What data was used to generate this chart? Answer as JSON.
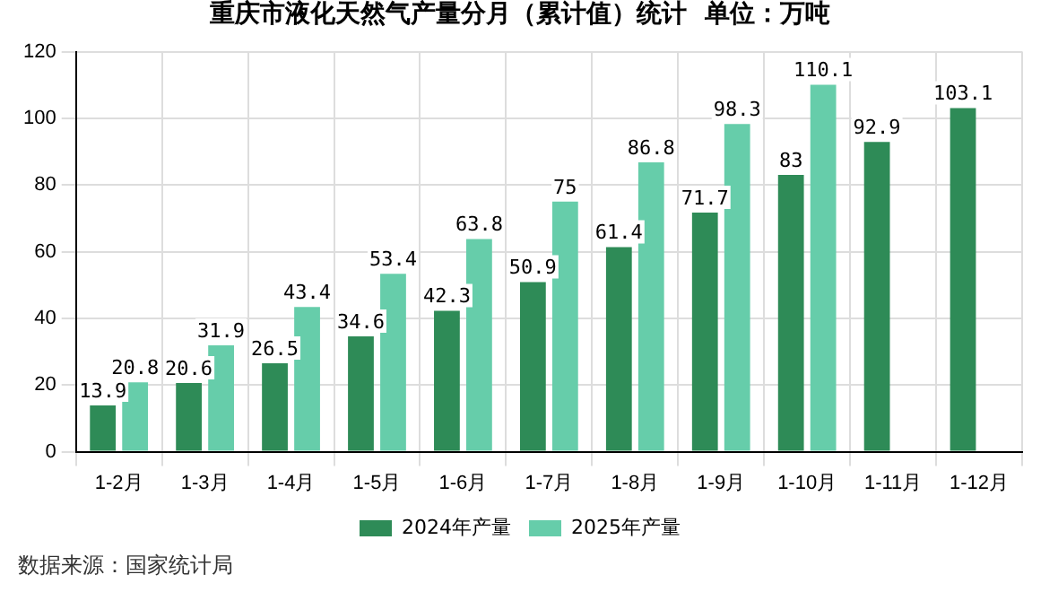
{
  "chart_data": {
    "type": "bar",
    "title": "重庆市液化天然气产量分月（累计值）统计  单位：万吨",
    "categories": [
      "1-2月",
      "1-3月",
      "1-4月",
      "1-5月",
      "1-6月",
      "1-7月",
      "1-8月",
      "1-9月",
      "1-10月",
      "1-11月",
      "1-12月"
    ],
    "series": [
      {
        "name": "2024年产量",
        "color": "#2e8b57",
        "values": [
          13.9,
          20.6,
          26.5,
          34.6,
          42.3,
          50.9,
          61.4,
          71.7,
          83,
          92.9,
          103.1
        ]
      },
      {
        "name": "2025年产量",
        "color": "#66cdaa",
        "values": [
          20.8,
          31.9,
          43.4,
          53.4,
          63.8,
          75,
          86.8,
          98.3,
          110.1,
          null,
          null
        ]
      }
    ],
    "ylim": [
      0,
      120
    ],
    "yticks": [
      0,
      20,
      40,
      60,
      80,
      100,
      120
    ],
    "grid": true,
    "legend": "bottom",
    "data_labels": true,
    "annotations": [
      "数据来源：国家统计局"
    ]
  }
}
